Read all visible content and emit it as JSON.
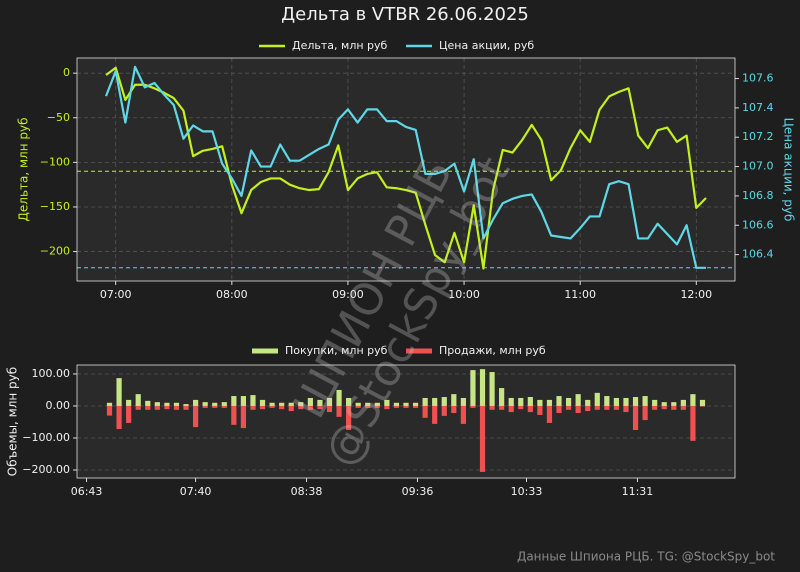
{
  "chart_data": [
    {
      "type": "line",
      "title": "Дельта в VTBR 26.06.2025",
      "x": [
        "06:55",
        "07:00",
        "07:05",
        "07:10",
        "07:15",
        "07:20",
        "07:25",
        "07:30",
        "07:35",
        "07:40",
        "07:45",
        "07:50",
        "07:55",
        "08:00",
        "08:05",
        "08:10",
        "08:15",
        "08:20",
        "08:25",
        "08:30",
        "08:35",
        "08:40",
        "08:45",
        "08:50",
        "08:55",
        "09:00",
        "09:05",
        "09:10",
        "09:15",
        "09:20",
        "09:25",
        "09:30",
        "09:35",
        "09:40",
        "09:45",
        "09:50",
        "09:55",
        "10:00",
        "10:05",
        "10:10",
        "10:15",
        "10:20",
        "10:25",
        "10:30",
        "10:35",
        "10:40",
        "10:45",
        "10:50",
        "10:55",
        "11:00",
        "11:05",
        "11:10",
        "11:15",
        "11:20",
        "11:25",
        "11:30",
        "11:35",
        "11:40",
        "11:45",
        "11:50",
        "11:55",
        "12:00",
        "12:05"
      ],
      "xlim": [
        "06:40",
        "12:20"
      ],
      "xticks": [
        "07:00",
        "08:00",
        "09:00",
        "10:00",
        "11:00",
        "12:00"
      ],
      "ylim": [
        -233,
        17
      ],
      "yticks": [
        {
          "value": -200,
          "label": "−200"
        },
        {
          "value": -150,
          "label": "−150"
        },
        {
          "value": -100,
          "label": "−100"
        },
        {
          "value": -50,
          "label": "−50"
        },
        0
      ],
      "y2lim": [
        106.22,
        107.74
      ],
      "y2ticks": [
        106.4,
        106.6,
        106.8,
        {
          "value": 107,
          "label": "107.0"
        },
        107.2,
        107.4,
        107.6
      ],
      "ylabel": "Дельта, млн руб",
      "y2label": "Цена акции, руб",
      "grid": true,
      "legend": "top",
      "series": [
        {
          "name": "Дельта, млн руб",
          "color": "#c3f01e",
          "axis": "y",
          "values": [
            -2,
            6,
            -30,
            -13,
            -13,
            -17,
            -22,
            -28,
            -42,
            -93,
            -87,
            -85,
            -82,
            -125,
            -157,
            -131,
            -122,
            -118,
            -118,
            -125,
            -129,
            -131,
            -130,
            -111,
            -81,
            -131,
            -118,
            -113,
            -111,
            -128,
            -129,
            -131,
            -134,
            -170,
            -204,
            -212,
            -179,
            -212,
            -148,
            -219,
            -131,
            -86,
            -89,
            -75,
            -58,
            -75,
            -120,
            -109,
            -84,
            -64,
            -77,
            -41,
            -26,
            -21,
            -17,
            -70,
            -84,
            -64,
            -61,
            -77,
            -70,
            -151,
            -140
          ]
        },
        {
          "name": "Цена акции, руб",
          "color": "#5ed8e6",
          "axis": "y2",
          "values": [
            107.48,
            107.65,
            107.3,
            107.68,
            107.54,
            107.57,
            107.49,
            107.42,
            107.19,
            107.28,
            107.24,
            107.24,
            107.02,
            106.92,
            106.8,
            107.11,
            107.0,
            107.0,
            107.15,
            107.04,
            107.04,
            107.08,
            107.12,
            107.15,
            107.32,
            107.39,
            107.3,
            107.39,
            107.39,
            107.31,
            107.31,
            107.27,
            107.25,
            106.95,
            106.95,
            106.97,
            107.02,
            106.83,
            107.05,
            106.51,
            106.64,
            106.75,
            106.78,
            106.8,
            106.81,
            106.69,
            106.53,
            106.52,
            106.51,
            106.58,
            106.66,
            106.66,
            106.88,
            106.9,
            106.88,
            106.51,
            106.51,
            106.61,
            106.54,
            106.47,
            106.6,
            106.31,
            106.31
          ]
        }
      ],
      "hlines": [
        {
          "value": -110,
          "axis": "y",
          "color": "#c3f01e"
        },
        {
          "value": 106.31,
          "axis": "y2",
          "color": "#5ed8e6"
        }
      ]
    },
    {
      "type": "bar",
      "x": [
        "06:55",
        "07:00",
        "07:05",
        "07:10",
        "07:15",
        "07:20",
        "07:25",
        "07:30",
        "07:35",
        "07:40",
        "07:45",
        "07:50",
        "07:55",
        "08:00",
        "08:05",
        "08:10",
        "08:15",
        "08:20",
        "08:25",
        "08:30",
        "08:35",
        "08:40",
        "08:45",
        "08:50",
        "08:55",
        "09:00",
        "09:05",
        "09:10",
        "09:15",
        "09:20",
        "09:25",
        "09:30",
        "09:35",
        "09:40",
        "09:45",
        "09:50",
        "09:55",
        "10:00",
        "10:05",
        "10:10",
        "10:15",
        "10:20",
        "10:25",
        "10:30",
        "10:35",
        "10:40",
        "10:45",
        "10:50",
        "10:55",
        "11:00",
        "11:05",
        "11:10",
        "11:15",
        "11:20",
        "11:25",
        "11:30",
        "11:35",
        "11:40",
        "11:45",
        "11:50",
        "11:55",
        "12:00",
        "12:05"
      ],
      "xlim": [
        "06:38",
        "12:22"
      ],
      "xticks": [
        "06:43",
        "07:40",
        "08:38",
        "09:36",
        "10:33",
        "11:31"
      ],
      "ylim": [
        -225,
        128
      ],
      "yticks": [
        {
          "value": -200,
          "label": "−200.00"
        },
        {
          "value": -100,
          "label": "−100.00"
        },
        {
          "value": 0,
          "label": "0.00"
        },
        {
          "value": 100,
          "label": "100.00"
        }
      ],
      "ylabel": "Объемы, млн руб",
      "grid": true,
      "legend": "top",
      "series": [
        {
          "name": "Покупки, млн руб",
          "color": "#c6e585",
          "values": [
            10,
            87,
            19,
            37,
            16,
            12,
            10,
            10,
            6,
            19,
            12,
            10,
            12,
            31,
            31,
            34,
            19,
            10,
            10,
            10,
            12,
            25,
            19,
            25,
            50,
            25,
            10,
            10,
            10,
            19,
            10,
            10,
            10,
            25,
            25,
            28,
            37,
            25,
            112,
            115,
            106,
            56,
            25,
            25,
            28,
            19,
            19,
            31,
            25,
            37,
            19,
            41,
            31,
            25,
            25,
            28,
            31,
            19,
            12,
            12,
            19,
            37,
            19
          ]
        },
        {
          "name": "Продажи, млн руб",
          "color": "#ef5050",
          "values": [
            -30,
            -72,
            -53,
            -12,
            -12,
            -12,
            -10,
            -12,
            -12,
            -66,
            -6,
            -6,
            -6,
            -59,
            -69,
            -12,
            -10,
            -6,
            -10,
            -16,
            -10,
            -12,
            -10,
            -19,
            -34,
            -75,
            -6,
            -6,
            -6,
            -10,
            -6,
            -6,
            -6,
            -37,
            -56,
            -31,
            -22,
            -56,
            -6,
            -206,
            -12,
            -12,
            -19,
            -10,
            -19,
            -28,
            -53,
            -22,
            -12,
            -22,
            -16,
            -12,
            -12,
            -12,
            -19,
            -75,
            -44,
            -12,
            -10,
            -12,
            -12,
            -109,
            -2
          ]
        }
      ]
    }
  ],
  "footer": "Данные Шпиона РЦБ. TG: @StockSpy_bot",
  "watermark": [
    "ШПИОН РЦБ",
    "@StockSpy_bot"
  ]
}
